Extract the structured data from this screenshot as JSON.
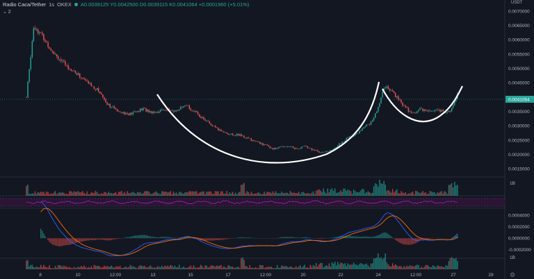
{
  "legend": {
    "symbol": "Radio Caca/Tether",
    "interval": "1s",
    "exchange": "OKEX",
    "ohlc": "A0.0039125 Y0.0042500 D0.0039115 K0.0041064 +0.0001960 (+5.01%)"
  },
  "indicator_toggle": "⌄ 2",
  "currency_label": "USDT",
  "price_axis": [
    "0.0070000",
    "0.0065000",
    "0.0060000",
    "0.0055000",
    "0.0050000",
    "0.0045000",
    "0.0035000",
    "0.0030000",
    "0.0025000",
    "0.0020000",
    "0.0015000"
  ],
  "current_price": "0.0041064",
  "volume_axis": "1B",
  "macd_axis": [
    "0.0004000",
    "0.0002000",
    "0.0000000",
    "-0.0002000"
  ],
  "bottom_axis": "1B",
  "time_axis": [
    "8",
    "10",
    "12:00",
    "13",
    "15",
    "17",
    "12:00",
    "20",
    "22",
    "24",
    "12:00",
    "27",
    "29"
  ],
  "colors": {
    "up": "#26a69a",
    "down": "#ef5350",
    "rsi": "#9c27b0",
    "macd": "#2962ff",
    "signal": "#ff6d00",
    "pattern": "#ffffff"
  },
  "chart_data": {
    "type": "candlestick",
    "series_close_approx": [
      0.004,
      0.0065,
      0.0062,
      0.0058,
      0.0055,
      0.0052,
      0.005,
      0.0048,
      0.0046,
      0.0044,
      0.0042,
      0.0038,
      0.0036,
      0.0035,
      0.0034,
      0.0035,
      0.0036,
      0.0035,
      0.0035,
      0.0036,
      0.0035,
      0.0036,
      0.0037,
      0.0035,
      0.0033,
      0.0031,
      0.0029,
      0.0028,
      0.0027,
      0.0027,
      0.0026,
      0.0025,
      0.0024,
      0.0023,
      0.0022,
      0.0023,
      0.0023,
      0.0022,
      0.0023,
      0.0022,
      0.0021,
      0.0021,
      0.0022,
      0.0024,
      0.0026,
      0.0027,
      0.0029,
      0.0031,
      0.0035,
      0.0044,
      0.0042,
      0.0039,
      0.0036,
      0.0034,
      0.0036,
      0.0035,
      0.0036,
      0.0035,
      0.0035,
      0.0041
    ],
    "ylim": [
      0.0013,
      0.0072
    ]
  }
}
